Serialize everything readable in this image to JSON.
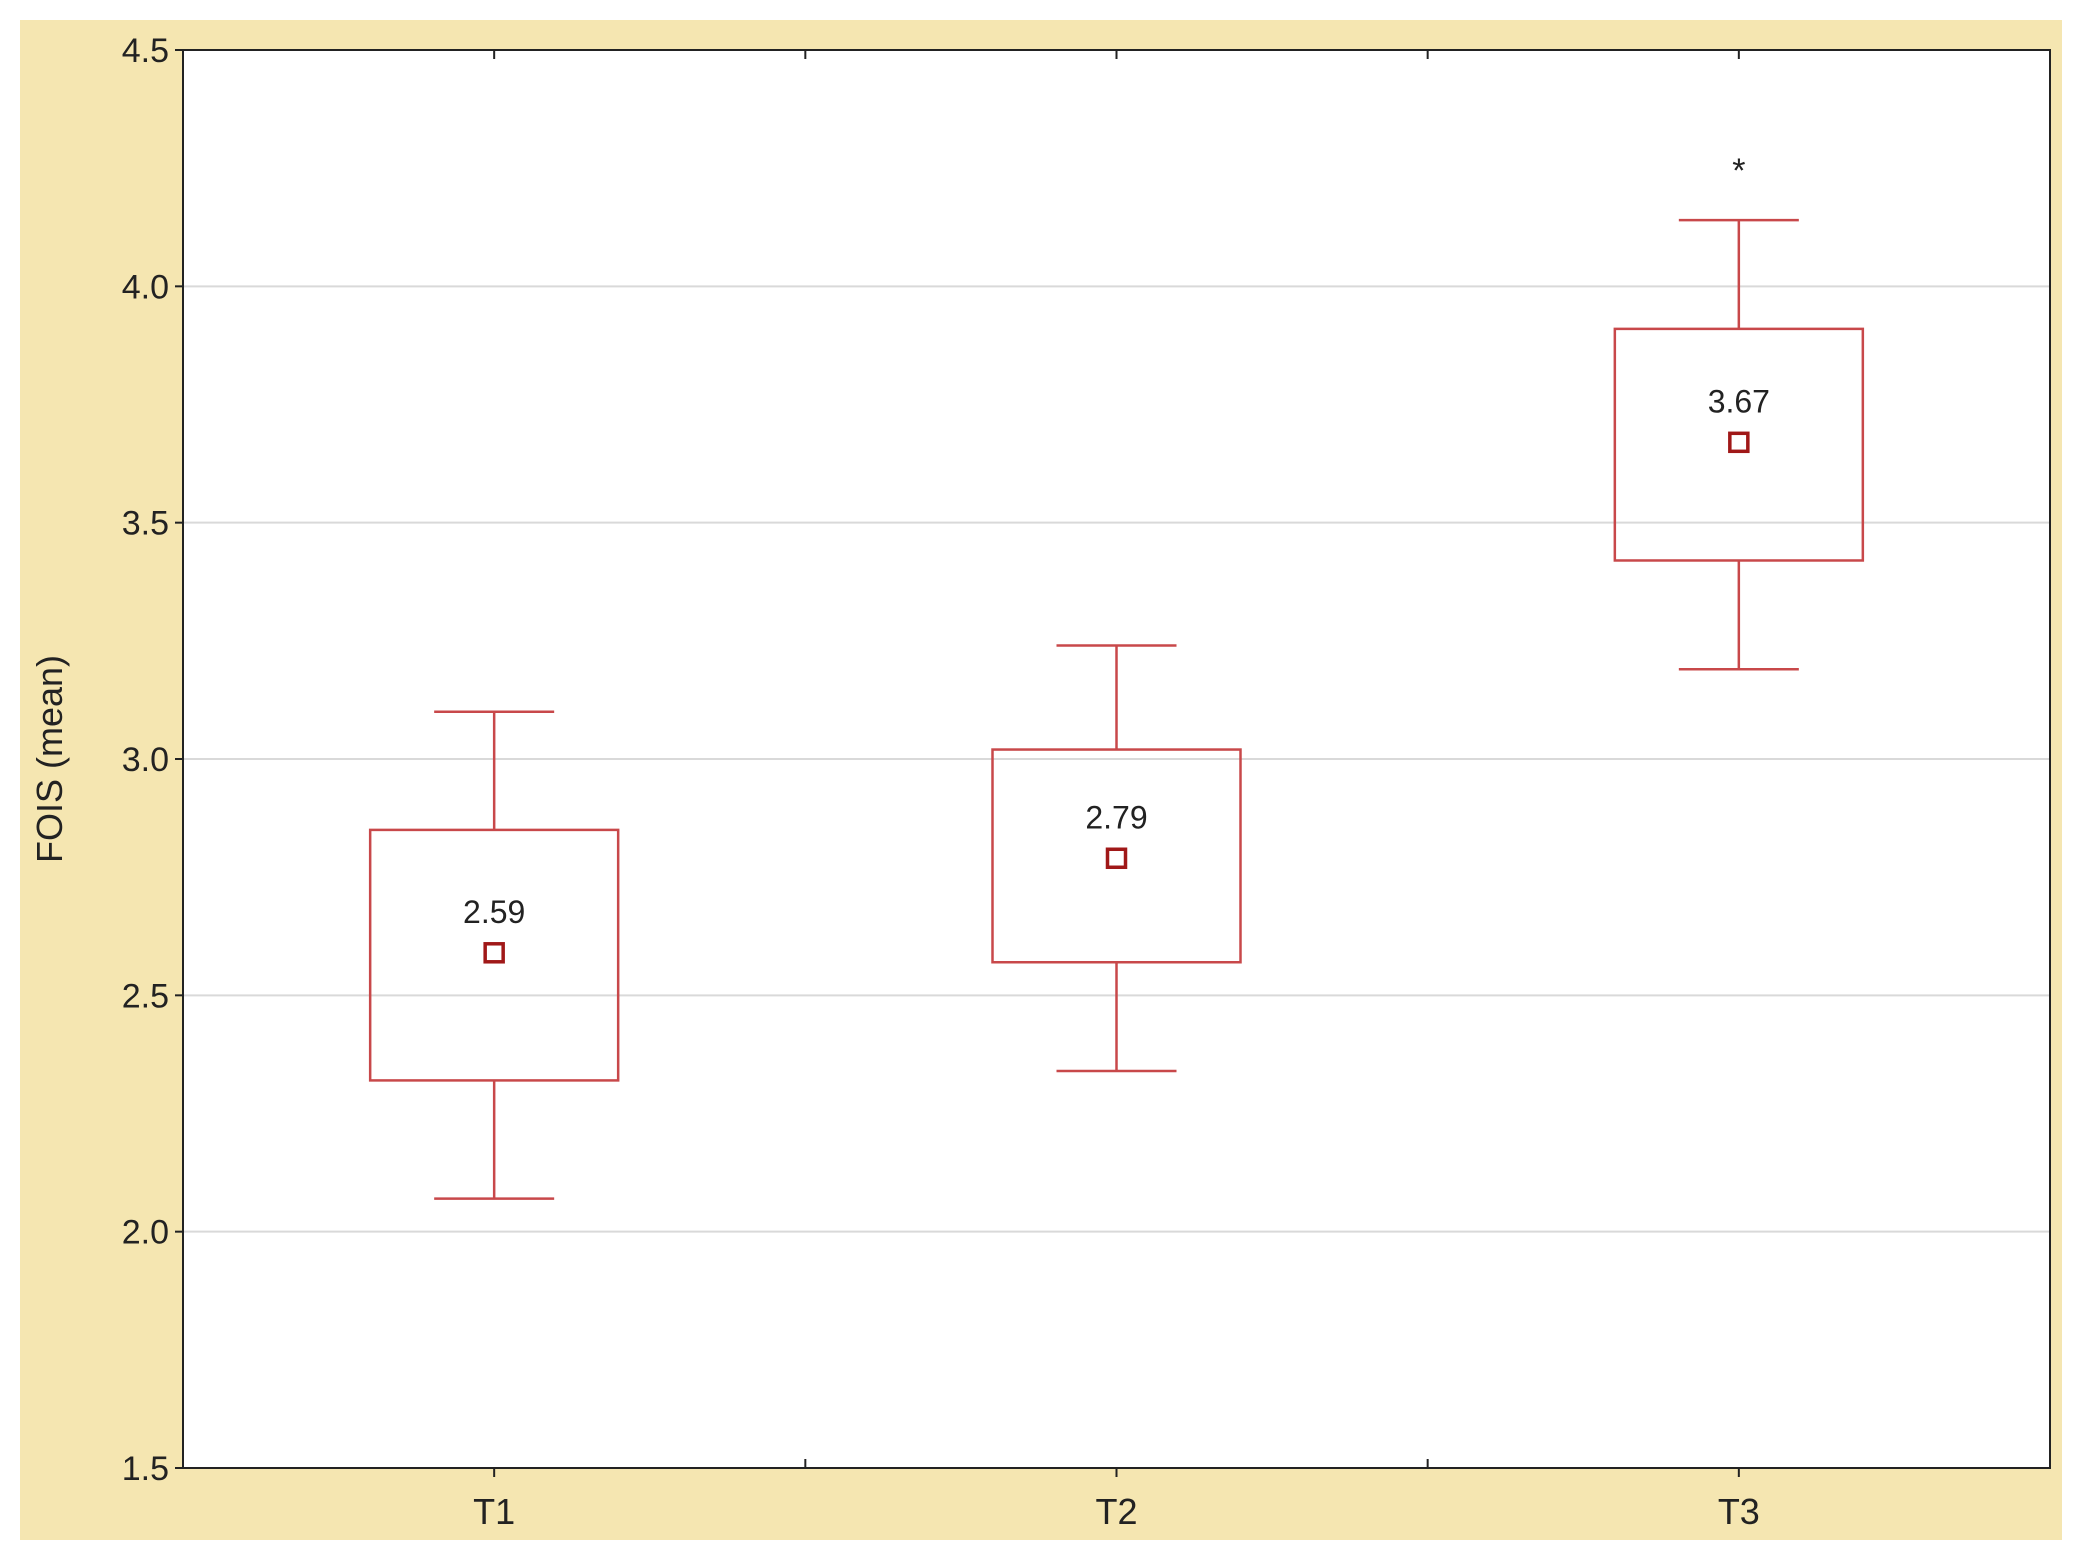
{
  "chart_data": {
    "type": "box",
    "title": "",
    "xlabel": "",
    "ylabel": "FOIS (mean)",
    "ylim": [
      1.5,
      4.5
    ],
    "yticks": [
      "1.5",
      "2.0",
      "2.5",
      "3.0",
      "3.5",
      "4.0",
      "4.5"
    ],
    "grid": true,
    "categories": [
      "T1",
      "T2",
      "T3"
    ],
    "boxes": [
      {
        "category": "T1",
        "mean": 2.59,
        "mean_label": "2.59",
        "box_low": 2.32,
        "box_high": 2.85,
        "whisker_low": 2.07,
        "whisker_high": 3.1,
        "annotation": ""
      },
      {
        "category": "T2",
        "mean": 2.79,
        "mean_label": "2.79",
        "box_low": 2.57,
        "box_high": 3.02,
        "whisker_low": 2.34,
        "whisker_high": 3.24,
        "annotation": ""
      },
      {
        "category": "T3",
        "mean": 3.67,
        "mean_label": "3.67",
        "box_low": 3.42,
        "box_high": 3.91,
        "whisker_low": 3.19,
        "whisker_high": 4.14,
        "annotation": "*"
      }
    ],
    "colors": {
      "frame_background": "#f5e6b1",
      "plot_background": "#ffffff",
      "box": "#c8484a",
      "mean_marker": "#a01818",
      "grid": "#d9d9d9",
      "axis": "#222222",
      "text": "#222222"
    }
  }
}
